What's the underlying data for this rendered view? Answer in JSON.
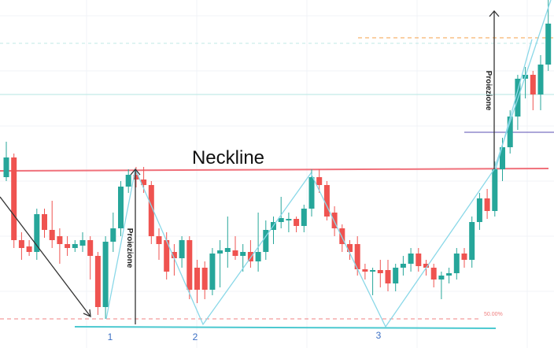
{
  "chart_data": {
    "type": "candlestick",
    "ylim": [
      0,
      442
    ],
    "up_color": "#26a69a",
    "down_color": "#ef5350",
    "open": [
      217,
      242,
      137,
      129,
      122,
      170,
      150,
      142,
      132,
      127,
      130,
      137,
      117,
      52,
      135,
      152,
      205,
      220,
      214,
      207,
      142,
      137,
      122,
      114,
      137,
      102,
      102,
      74,
      120,
      122,
      124,
      117,
      122,
      110,
      122,
      150,
      160,
      162,
      164,
      155,
      177,
      217,
      207,
      172,
      152,
      132,
      132,
      100,
      97,
      99,
      99,
      82,
      102,
      107,
      120,
      107,
      102,
      87,
      92,
      95,
      120,
      112,
      160,
      190,
      174,
      227,
      255,
      294,
      342,
      347,
      322,
      360
    ],
    "close": [
      242,
      137,
      127,
      122,
      170,
      150,
      137,
      132,
      127,
      132,
      137,
      117,
      52,
      135,
      152,
      205,
      220,
      214,
      207,
      142,
      132,
      97,
      114,
      137,
      74,
      74,
      74,
      120,
      124,
      127,
      117,
      122,
      110,
      122,
      150,
      160,
      165,
      164,
      155,
      177,
      217,
      207,
      167,
      152,
      132,
      122,
      100,
      97,
      99,
      95,
      82,
      102,
      107,
      120,
      104,
      102,
      87,
      92,
      95,
      120,
      112,
      160,
      190,
      174,
      227,
      255,
      294,
      342,
      347,
      322,
      360,
      412
    ],
    "high": [
      262,
      247,
      147,
      137,
      177,
      177,
      187,
      152,
      142,
      137,
      147,
      142,
      122,
      142,
      172,
      212,
      227,
      230,
      230,
      212,
      152,
      147,
      132,
      142,
      142,
      112,
      110,
      127,
      137,
      167,
      142,
      132,
      137,
      172,
      162,
      167,
      192,
      172,
      167,
      182,
      227,
      227,
      212,
      180,
      157,
      137,
      142,
      107,
      102,
      112,
      112,
      107,
      117,
      127,
      127,
      112,
      107,
      97,
      102,
      127,
      127,
      167,
      197,
      202,
      237,
      267,
      302,
      347,
      357,
      352,
      372,
      442
    ],
    "low": [
      212,
      127,
      112,
      117,
      112,
      140,
      127,
      107,
      117,
      122,
      122,
      87,
      42,
      37,
      122,
      142,
      197,
      204,
      197,
      132,
      112,
      87,
      92,
      102,
      62,
      57,
      62,
      67,
      77,
      102,
      112,
      97,
      102,
      97,
      112,
      132,
      152,
      147,
      147,
      147,
      167,
      197,
      162,
      142,
      122,
      112,
      92,
      87,
      67,
      77,
      72,
      72,
      92,
      97,
      97,
      92,
      77,
      62,
      82,
      87,
      102,
      102,
      150,
      164,
      167,
      212,
      247,
      277,
      317,
      302,
      302,
      352
    ],
    "annotations": {
      "neckline": "Neckline",
      "projection_left": "Proiezione",
      "projection_right": "Proiezione",
      "fib_level": "50.00%",
      "point_1": "1",
      "point_2": "2",
      "point_3": "3"
    }
  }
}
